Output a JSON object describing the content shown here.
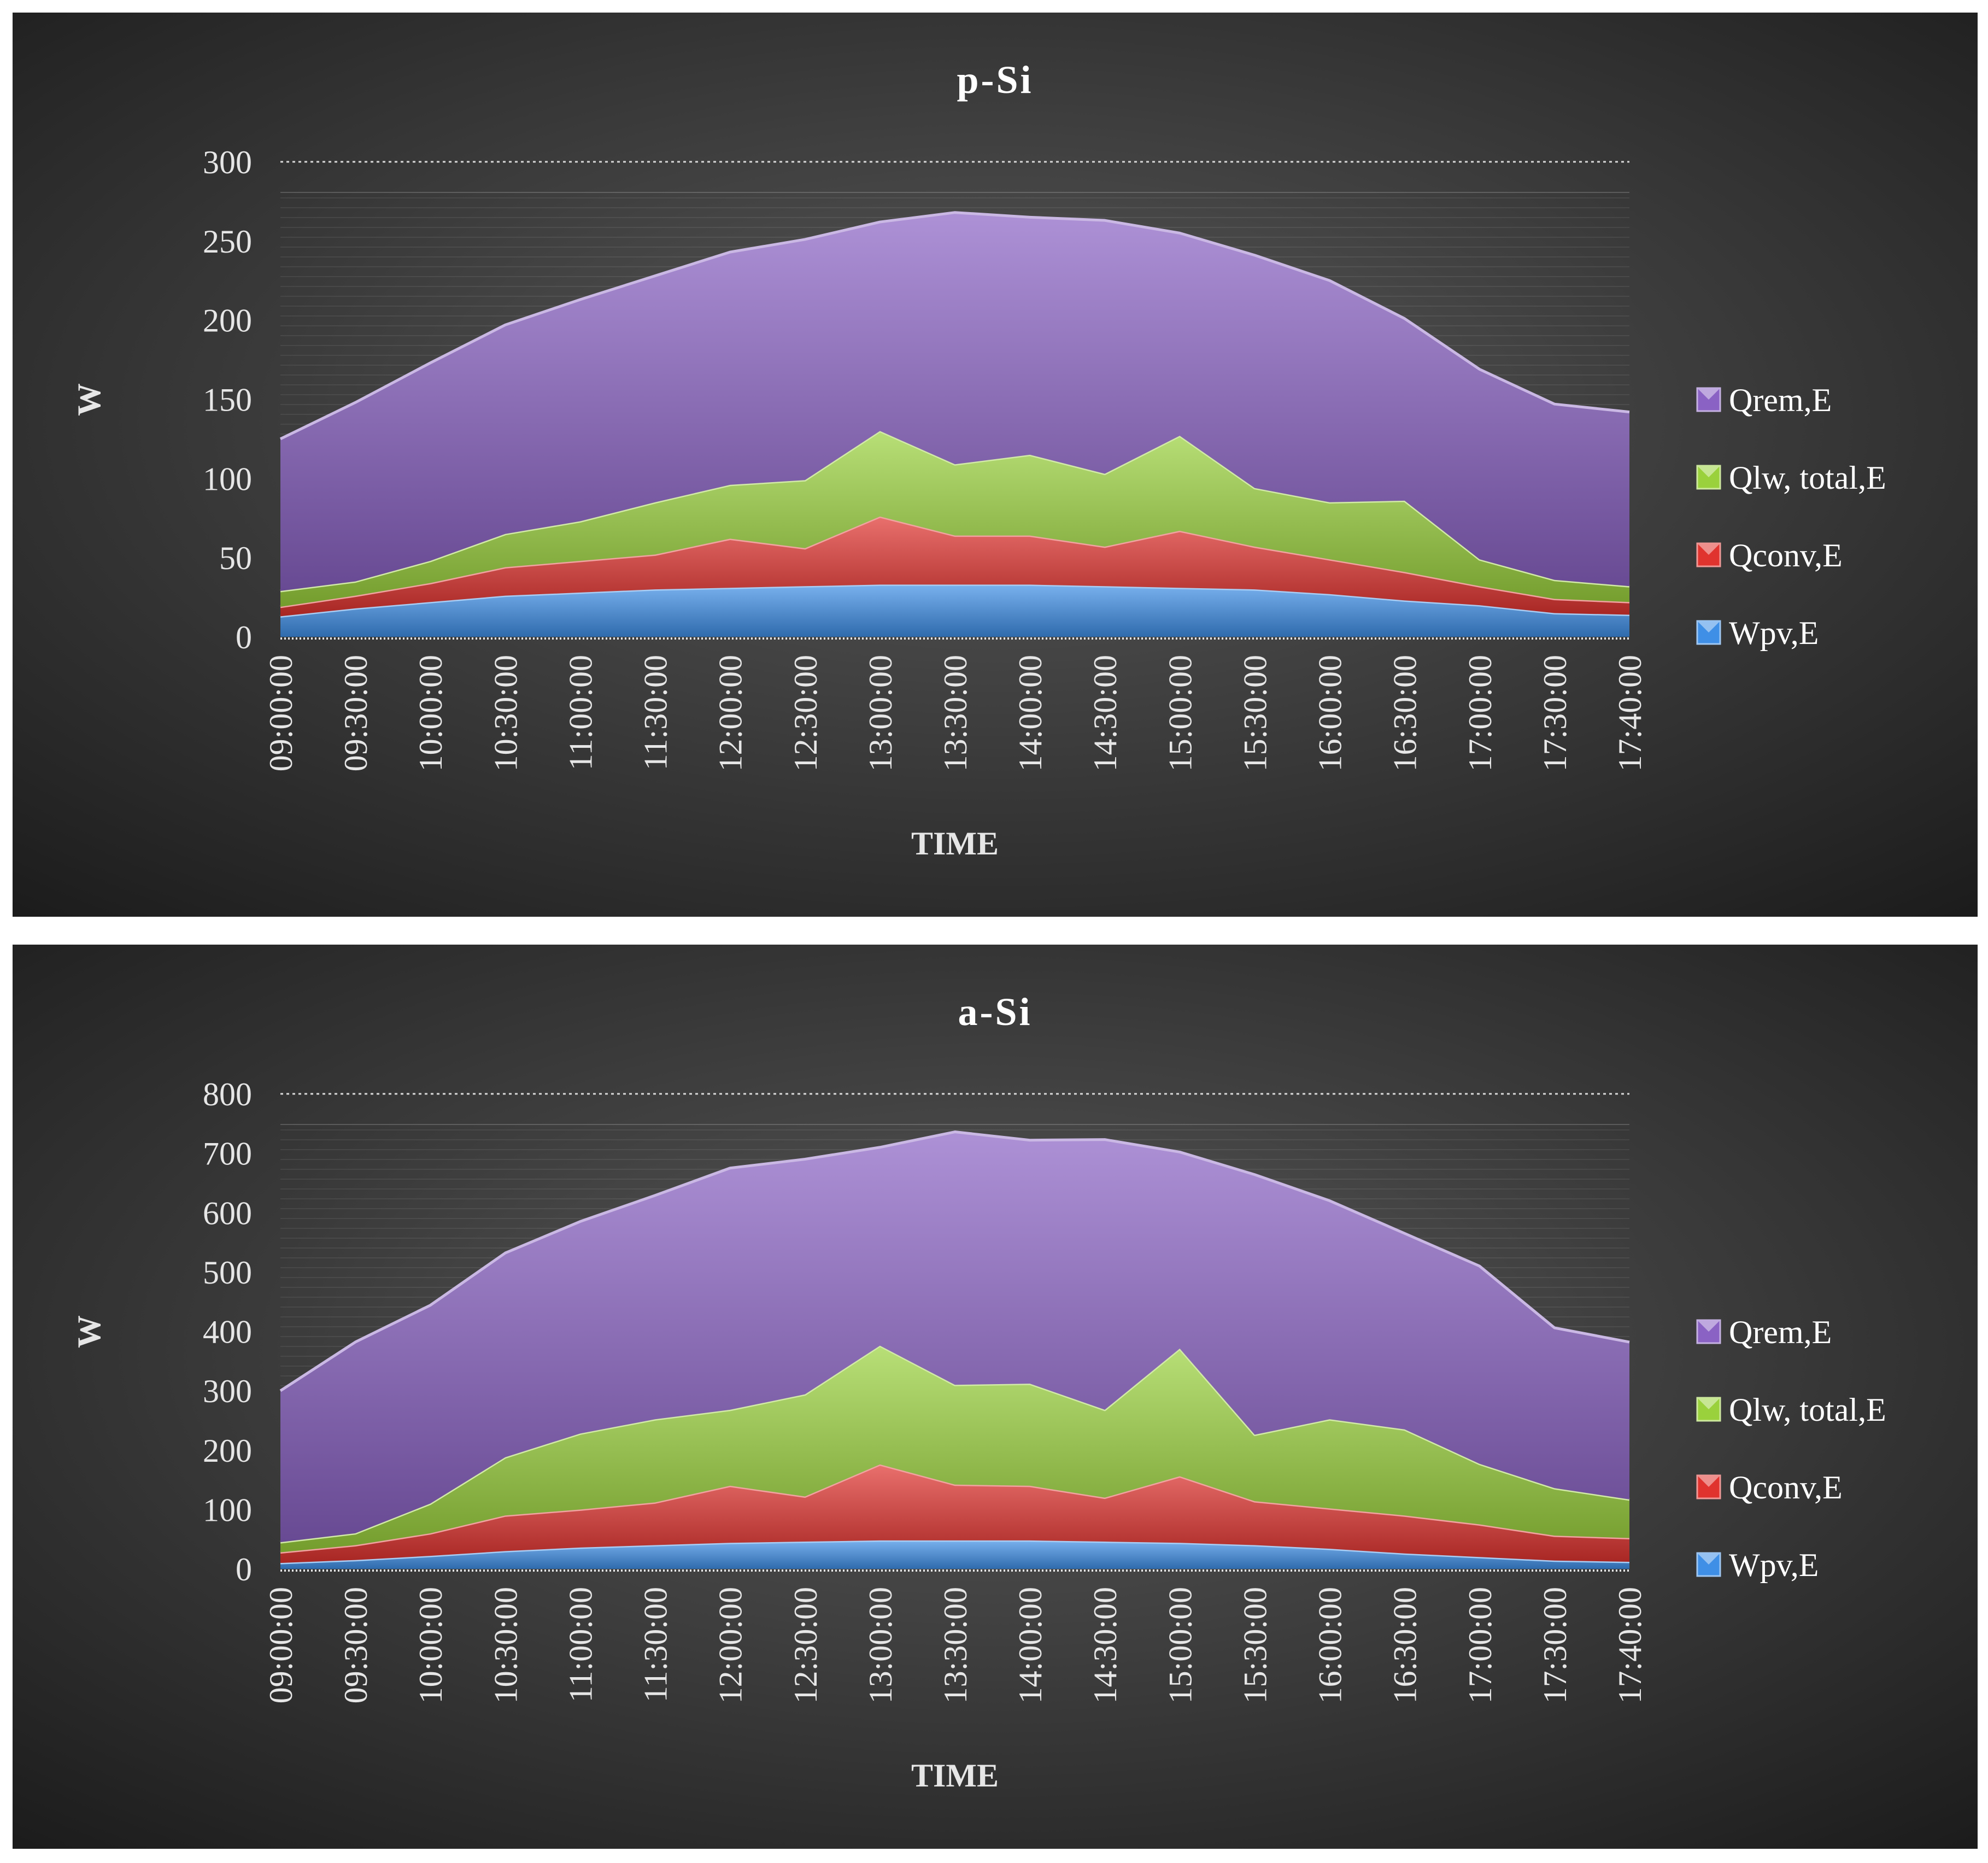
{
  "chart_data": [
    {
      "type": "area",
      "stacked": true,
      "title": "p-Si",
      "xlabel": "TIME",
      "ylabel": "W",
      "ylim": [
        0,
        300
      ],
      "yticks": [
        0,
        50,
        100,
        150,
        200,
        250,
        300
      ],
      "categories": [
        "09:00:00",
        "09:30:00",
        "10:00:00",
        "10:30:00",
        "11:00:00",
        "11:30:00",
        "12:00:00",
        "12:30:00",
        "13:00:00",
        "13:30:00",
        "14:00:00",
        "14:30:00",
        "15:00:00",
        "15:30:00",
        "16:00:00",
        "16:30:00",
        "17:00:00",
        "17:30:00",
        "17:40:00"
      ],
      "legend_position": "right",
      "series": [
        {
          "name": "Wpv,E",
          "color": "#3f8fe6",
          "values": [
            13,
            18,
            22,
            26,
            28,
            30,
            31,
            32,
            33,
            33,
            33,
            32,
            31,
            30,
            27,
            23,
            20,
            15,
            14
          ]
        },
        {
          "name": "Qconv,E",
          "color": "#e0332e",
          "values": [
            6,
            8,
            12,
            18,
            20,
            22,
            31,
            24,
            43,
            31,
            31,
            25,
            36,
            27,
            22,
            18,
            12,
            9,
            8
          ]
        },
        {
          "name": "Qlw, total,E",
          "color": "#9ad13c",
          "values": [
            10,
            9,
            14,
            21,
            25,
            33,
            34,
            43,
            54,
            45,
            51,
            46,
            60,
            37,
            36,
            45,
            17,
            12,
            10
          ]
        },
        {
          "name": "Qrem,E",
          "color": "#8a62c4",
          "values": [
            96,
            113,
            125,
            132,
            140,
            143,
            147,
            152,
            132,
            159,
            150,
            160,
            128,
            147,
            140,
            115,
            120,
            111,
            110
          ]
        }
      ]
    },
    {
      "type": "area",
      "stacked": true,
      "title": "a-Si",
      "xlabel": "TIME",
      "ylabel": "W",
      "ylim": [
        0,
        800
      ],
      "yticks": [
        0,
        100,
        200,
        300,
        400,
        500,
        600,
        700,
        800
      ],
      "categories": [
        "09:00:00",
        "09:30:00",
        "10:00:00",
        "10:30:00",
        "11:00:00",
        "11:30:00",
        "12:00:00",
        "12:30:00",
        "13:00:00",
        "13:30:00",
        "14:00:00",
        "14:30:00",
        "15:00:00",
        "15:30:00",
        "16:00:00",
        "16:30:00",
        "17:00:00",
        "17:30:00",
        "17:40:00"
      ],
      "legend_position": "right",
      "series": [
        {
          "name": "Wpv,E",
          "color": "#3f8fe6",
          "values": [
            10,
            15,
            22,
            30,
            36,
            40,
            44,
            46,
            48,
            48,
            48,
            46,
            44,
            40,
            34,
            26,
            20,
            14,
            12
          ]
        },
        {
          "name": "Qconv,E",
          "color": "#e0332e",
          "values": [
            18,
            25,
            38,
            60,
            64,
            72,
            96,
            76,
            128,
            94,
            92,
            74,
            112,
            74,
            68,
            64,
            55,
            42,
            40
          ]
        },
        {
          "name": "Qlw, total,E",
          "color": "#9ad13c",
          "values": [
            17,
            20,
            50,
            98,
            128,
            140,
            128,
            172,
            200,
            168,
            172,
            148,
            215,
            112,
            150,
            145,
            102,
            80,
            65
          ]
        },
        {
          "name": "Qrem,E",
          "color": "#8a62c4",
          "values": [
            255,
            322,
            334,
            344,
            357,
            377,
            407,
            396,
            334,
            426,
            410,
            455,
            331,
            438,
            368,
            330,
            333,
            270,
            265
          ]
        }
      ]
    }
  ]
}
